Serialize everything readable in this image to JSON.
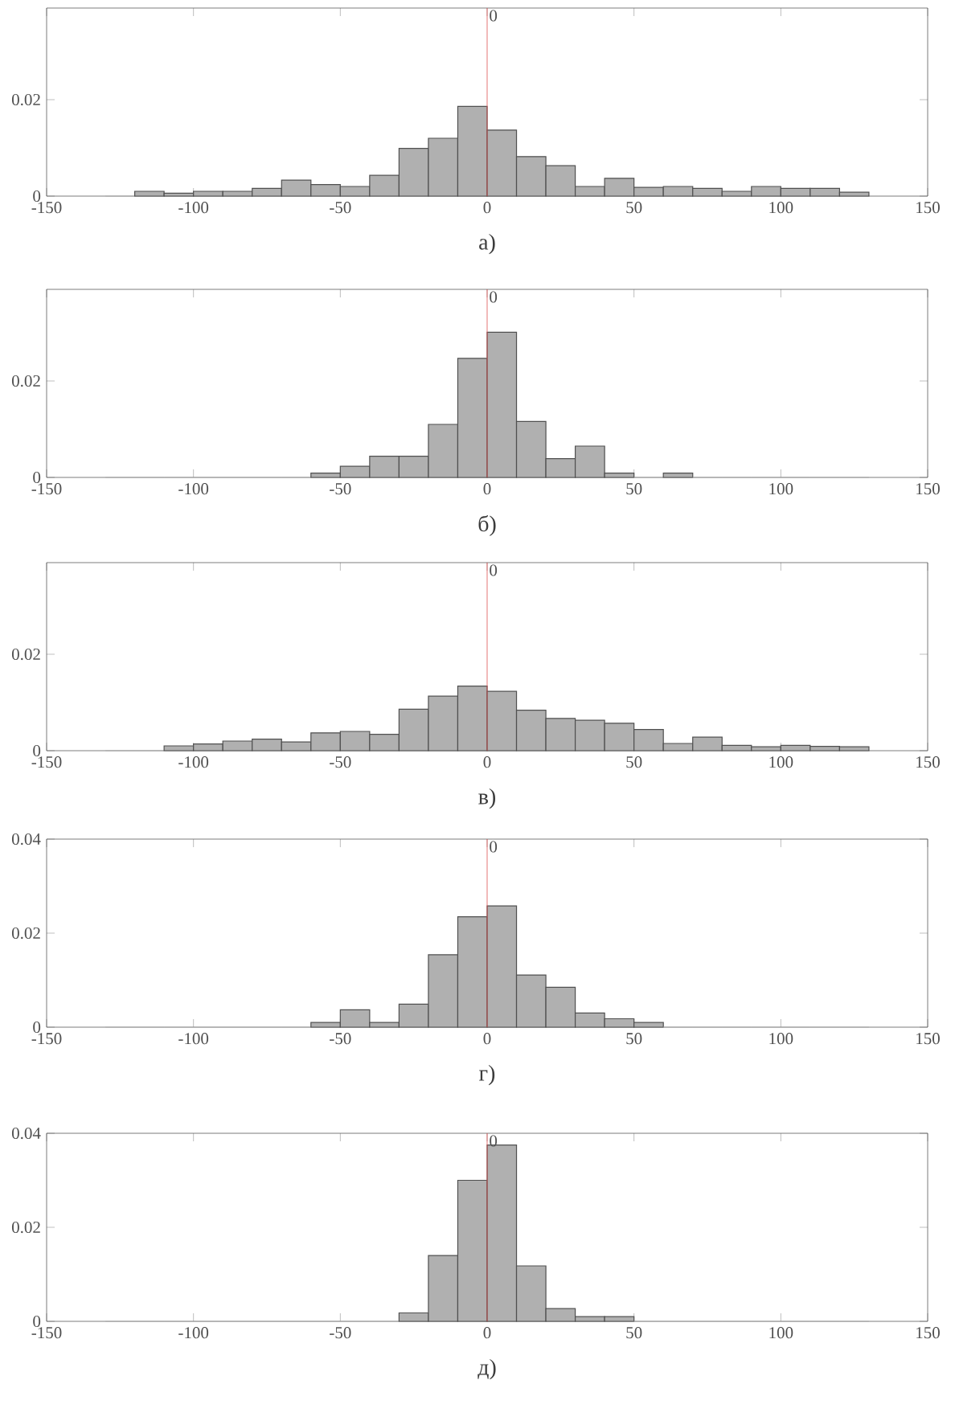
{
  "chart_data": [
    {
      "type": "histogram",
      "xlabel": "а)",
      "bins": [
        -130,
        -120,
        -110,
        -100,
        -90,
        -80,
        -70,
        -60,
        -50,
        -40,
        -30,
        -20,
        -10,
        0,
        10,
        20,
        30,
        40,
        50,
        60,
        70,
        80,
        90,
        100,
        110,
        120,
        130
      ],
      "values": [
        0,
        0.001,
        0.0006,
        0.001,
        0.001,
        0.0016,
        0.0033,
        0.0024,
        0.002,
        0.0043,
        0.0099,
        0.012,
        0.0186,
        0.0137,
        0.0082,
        0.0063,
        0.002,
        0.0037,
        0.0018,
        0.002,
        0.0016,
        0.001,
        0.002,
        0.0016,
        0.0016,
        0.0008
      ],
      "color": "#b0b0b0",
      "xlim": [
        -150,
        150
      ],
      "xticks": [
        -150,
        -100,
        -50,
        0,
        50,
        100,
        150
      ],
      "ylim": [
        0,
        0.039
      ],
      "yticks": [
        0,
        0.02
      ],
      "ref_lines": [
        {
          "axis": "x",
          "value": 0,
          "label": "0",
          "color": "#e05050"
        }
      ]
    },
    {
      "type": "histogram",
      "xlabel": "б)",
      "bins": [
        -130,
        -120,
        -110,
        -100,
        -90,
        -80,
        -70,
        -60,
        -50,
        -40,
        -30,
        -20,
        -10,
        0,
        10,
        20,
        30,
        40,
        50,
        60,
        70,
        80,
        90,
        100,
        110,
        120,
        130
      ],
      "values": [
        0,
        0,
        0,
        0,
        0,
        0,
        0,
        0.0009,
        0.0023,
        0.0044,
        0.0044,
        0.011,
        0.0247,
        0.0301,
        0.0116,
        0.0039,
        0.0065,
        0.0009,
        0,
        0.0009,
        0,
        0,
        0,
        0,
        0,
        0
      ],
      "color": "#b0b0b0",
      "xlim": [
        -150,
        150
      ],
      "xticks": [
        -150,
        -100,
        -50,
        0,
        50,
        100,
        150
      ],
      "ylim": [
        0,
        0.039
      ],
      "yticks": [
        0,
        0.02
      ],
      "ref_lines": [
        {
          "axis": "x",
          "value": 0,
          "label": "0",
          "color": "#e05050"
        }
      ]
    },
    {
      "type": "histogram",
      "xlabel": "в)",
      "bins": [
        -130,
        -120,
        -110,
        -100,
        -90,
        -80,
        -70,
        -60,
        -50,
        -40,
        -30,
        -20,
        -10,
        0,
        10,
        20,
        30,
        40,
        50,
        60,
        70,
        80,
        90,
        100,
        110,
        120,
        130
      ],
      "values": [
        0,
        0,
        0.001,
        0.0014,
        0.002,
        0.0024,
        0.0018,
        0.0037,
        0.004,
        0.0034,
        0.0086,
        0.0113,
        0.0134,
        0.0123,
        0.0084,
        0.0067,
        0.0063,
        0.0057,
        0.0044,
        0.0015,
        0.0028,
        0.0011,
        0.0008,
        0.0011,
        0.0009,
        0.0008
      ],
      "color": "#b0b0b0",
      "xlim": [
        -150,
        150
      ],
      "xticks": [
        -150,
        -100,
        -50,
        0,
        50,
        100,
        150
      ],
      "ylim": [
        0,
        0.039
      ],
      "yticks": [
        0,
        0.02
      ],
      "ref_lines": [
        {
          "axis": "x",
          "value": 0,
          "label": "0",
          "color": "#e05050"
        }
      ]
    },
    {
      "type": "histogram",
      "xlabel": "г)",
      "bins": [
        -130,
        -120,
        -110,
        -100,
        -90,
        -80,
        -70,
        -60,
        -50,
        -40,
        -30,
        -20,
        -10,
        0,
        10,
        20,
        30,
        40,
        50,
        60,
        70,
        80,
        90,
        100,
        110,
        120,
        130
      ],
      "values": [
        0,
        0,
        0,
        0,
        0,
        0,
        0,
        0.001,
        0.0037,
        0.001,
        0.0049,
        0.0154,
        0.0235,
        0.0258,
        0.0111,
        0.0085,
        0.003,
        0.0018,
        0.001,
        0,
        0,
        0,
        0,
        0,
        0,
        0
      ],
      "color": "#b0b0b0",
      "xlim": [
        -150,
        150
      ],
      "xticks": [
        -150,
        -100,
        -50,
        0,
        50,
        100,
        150
      ],
      "ylim": [
        0,
        0.04
      ],
      "yticks": [
        0,
        0.02,
        0.04
      ],
      "ref_lines": [
        {
          "axis": "x",
          "value": 0,
          "label": "0",
          "color": "#e05050"
        }
      ]
    },
    {
      "type": "histogram",
      "xlabel": "д)",
      "bins": [
        -130,
        -120,
        -110,
        -100,
        -90,
        -80,
        -70,
        -60,
        -50,
        -40,
        -30,
        -20,
        -10,
        0,
        10,
        20,
        30,
        40,
        50,
        60,
        70,
        80,
        90,
        100,
        110,
        120,
        130
      ],
      "values": [
        0,
        0,
        0,
        0,
        0,
        0,
        0,
        0,
        0,
        0,
        0.0018,
        0.014,
        0.03,
        0.0375,
        0.0118,
        0.0027,
        0.001,
        0.001,
        0,
        0,
        0,
        0,
        0,
        0,
        0,
        0
      ],
      "color": "#b0b0b0",
      "xlim": [
        -150,
        150
      ],
      "xticks": [
        -150,
        -100,
        -50,
        0,
        50,
        100,
        150
      ],
      "ylim": [
        0,
        0.04
      ],
      "yticks": [
        0,
        0.02,
        0.04
      ],
      "ref_lines": [
        {
          "axis": "x",
          "value": 0,
          "label": "0",
          "color": "#e05050"
        }
      ]
    }
  ]
}
